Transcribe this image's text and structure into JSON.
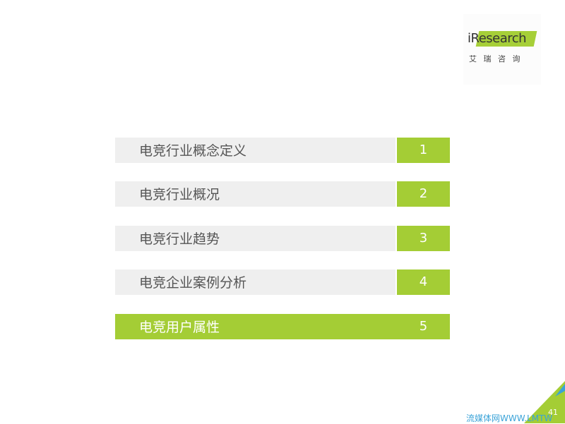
{
  "logo": {
    "brand": "iResearch",
    "subtitle": "艾 瑞 咨 询"
  },
  "menu": {
    "items": [
      {
        "label": "电竞行业概念定义",
        "number": 1
      },
      {
        "label": "电竞行业概况",
        "number": 2
      },
      {
        "label": "电竞行业趋势",
        "number": 3
      },
      {
        "label": "电竞企业案例分析",
        "number": 4
      },
      {
        "label": "电竞用户属性",
        "number": 5
      }
    ]
  },
  "footer": {
    "page_number": 41,
    "watermark": "流媒体网WWW.LMTW"
  }
}
